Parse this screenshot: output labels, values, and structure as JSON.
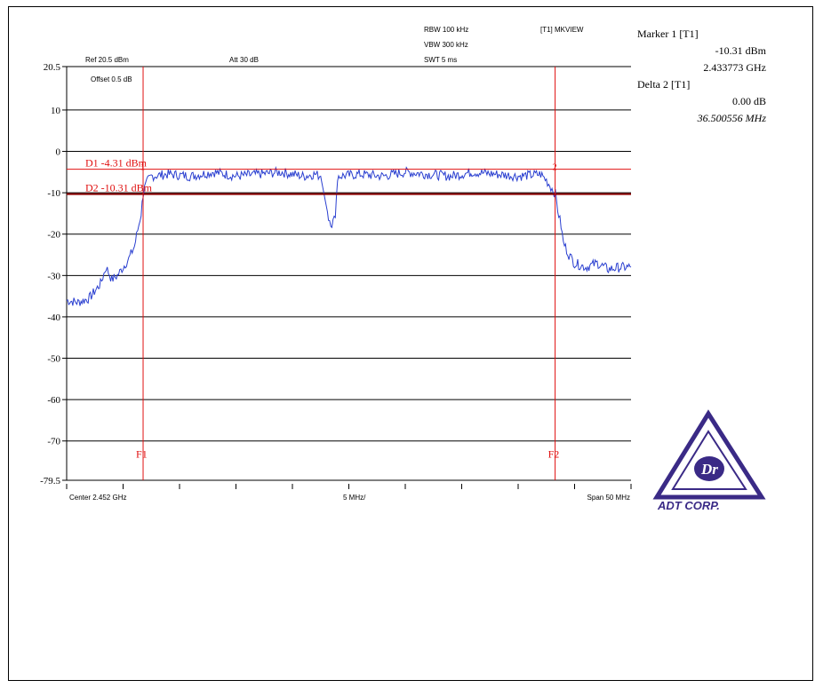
{
  "header": {
    "ref": "Ref 20.5 dBm",
    "offset": "Offset 0.5 dB",
    "att": "Att 30 dB",
    "rbw": "RBW 100 kHz",
    "vbw": "VBW 300 kHz",
    "swt": "SWT 5 ms",
    "mode": "[T1] MKVIEW"
  },
  "markers": {
    "marker1_title": "Marker 1 [T1]",
    "marker1_level": "-10.31 dBm",
    "marker1_freq": "2.433773 GHz",
    "delta2_title": "Delta 2 [T1]",
    "delta2_level": "0.00 dB",
    "delta2_freq": "36.500556 MHz"
  },
  "footer": {
    "center": "Center 2.452 GHz",
    "per_div": "5 MHz/",
    "span": "Span 50 MHz"
  },
  "logo": {
    "text": "ADT CORP."
  },
  "colors": {
    "trace": "#2a3fd0",
    "lines": "#e01010",
    "dark_line": "#8b0000",
    "logo": "#3a2a86"
  },
  "chart_data": {
    "type": "line",
    "title": "",
    "xlabel": "",
    "ylabel": "",
    "yunit": "dBm",
    "xlim": [
      2.427,
      2.477
    ],
    "ylim": [
      -79.5,
      20.5
    ],
    "ytick_labels": [
      "20.5",
      "10",
      "0",
      "-10",
      "-20",
      "-30",
      "-40",
      "-50",
      "-60",
      "-70",
      "-79.5"
    ],
    "ytick_values": [
      20.5,
      10,
      0,
      -10,
      -20,
      -30,
      -40,
      -50,
      -60,
      -70,
      -79.5
    ],
    "x_divisions": 10,
    "grid": true,
    "reference_lines": [
      {
        "name": "D1",
        "label": "D1 -4.31 dBm",
        "value": -4.31
      },
      {
        "name": "D2",
        "label": "D2 -10.31 dBm",
        "value": -10.31
      }
    ],
    "vertical_lines": [
      {
        "name": "F1",
        "label": "F1",
        "x": 2.433773
      },
      {
        "name": "F2",
        "label": "F2",
        "x": 2.470274
      }
    ],
    "marker_labels": [
      {
        "label": "1",
        "x": 2.433773,
        "y": -4.5
      },
      {
        "label": "2",
        "x": 2.470274,
        "y": -4.5
      }
    ],
    "series": [
      {
        "x": [
          2.427,
          2.428,
          2.429,
          2.43,
          2.4305,
          2.431,
          2.4315,
          2.432,
          2.4325,
          2.433,
          2.4333,
          2.4336,
          2.43377,
          2.4339,
          2.4342,
          2.4345,
          2.436,
          2.438,
          2.44,
          2.442,
          2.444,
          2.446,
          2.448,
          2.449,
          2.4495,
          2.4502,
          2.4505,
          2.4508,
          2.451,
          2.453,
          2.455,
          2.457,
          2.459,
          2.461,
          2.463,
          2.465,
          2.467,
          2.469,
          2.4695,
          2.47,
          2.4703,
          2.4705,
          2.4708,
          2.471,
          2.4715,
          2.472,
          2.473,
          2.474,
          2.475,
          2.476,
          2.477
        ],
        "y": [
          -36,
          -36.5,
          -35.5,
          -32,
          -28,
          -31,
          -30,
          -28,
          -26,
          -23,
          -19,
          -15,
          -10.3,
          -9,
          -7,
          -6,
          -5.5,
          -6,
          -5,
          -6,
          -5.5,
          -5,
          -6,
          -5.5,
          -6,
          -16,
          -17.5,
          -16,
          -6,
          -5.5,
          -6,
          -5,
          -5.5,
          -6,
          -5,
          -5.5,
          -6,
          -5.5,
          -7,
          -9,
          -10.3,
          -14,
          -18,
          -22,
          -25,
          -27,
          -28,
          -27,
          -28.5,
          -28,
          -28
        ]
      }
    ]
  }
}
